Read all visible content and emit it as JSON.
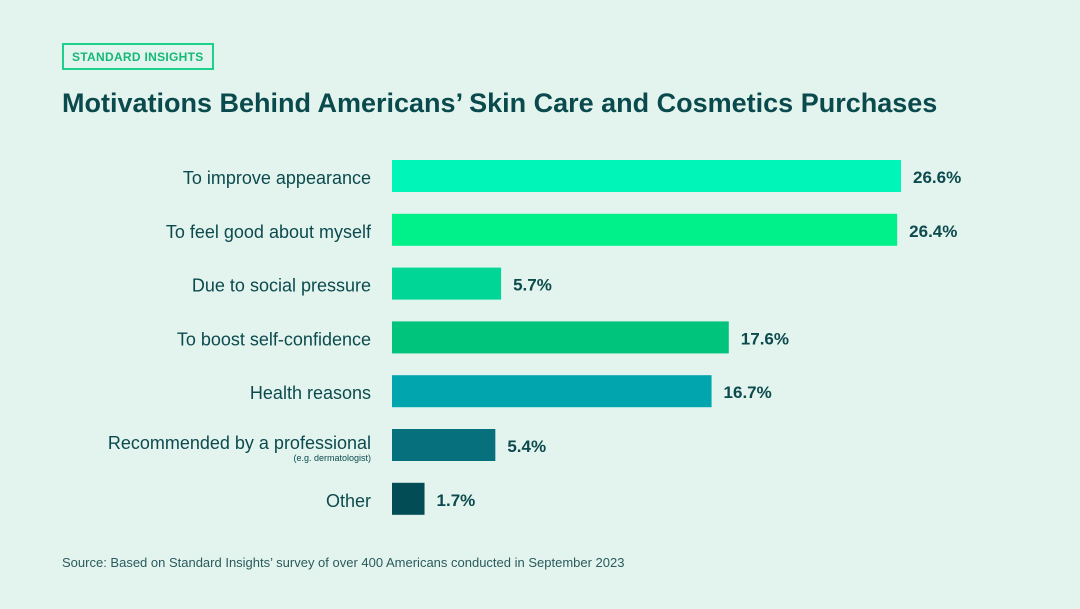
{
  "badge": "STANDARD INSIGHTS",
  "title": "Motivations Behind Americans’ Skin Care and Cosmetics Purchases",
  "source": "Source: Based on Standard Insights’ survey of over 400 Americans conducted in September 2023",
  "chart_data": {
    "type": "bar",
    "orientation": "horizontal",
    "categories": [
      "To improve appearance",
      "To feel good about myself",
      "Due to social pressure",
      "To boost self-confidence",
      "Health reasons",
      "Recommended by a professional",
      "Other"
    ],
    "category_notes": [
      "",
      "",
      "",
      "",
      "",
      "(e.g. dermatologist)",
      ""
    ],
    "values": [
      26.6,
      26.4,
      5.7,
      17.6,
      16.7,
      5.4,
      1.7
    ],
    "value_labels": [
      "26.6%",
      "26.4%",
      "5.7%",
      "17.6%",
      "16.7%",
      "5.4%",
      "1.7%"
    ],
    "colors": [
      "#00f5b8",
      "#00f08a",
      "#00d696",
      "#00c47c",
      "#00a5ae",
      "#06717c",
      "#024c55"
    ],
    "unit": "%",
    "grid": false,
    "legend": "none"
  }
}
